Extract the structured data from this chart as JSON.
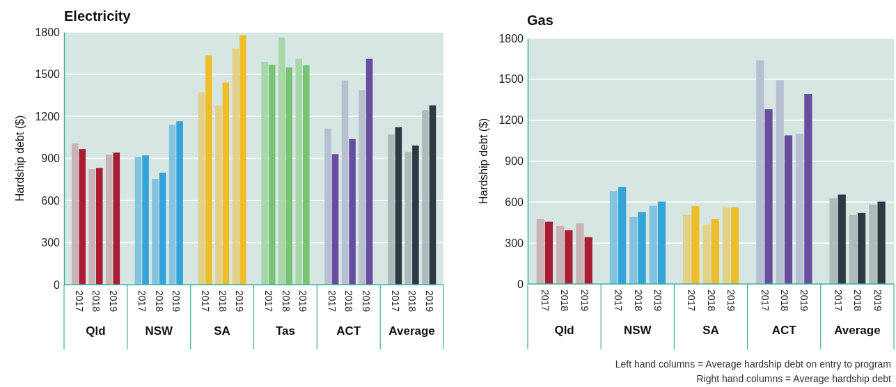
{
  "chart_data": [
    {
      "type": "bar",
      "title": "Electricity",
      "ylabel": "Hardship debt ($)",
      "categories": [
        "2017",
        "2018",
        "2019",
        "2017",
        "2018",
        "2019",
        "2017",
        "2018",
        "2019",
        "2017",
        "2018",
        "2019",
        "2017",
        "2018",
        "2019",
        "2017",
        "2018",
        "2019"
      ],
      "series": [
        {
          "colors": [
            "#c9b3b7",
            "#c9b3b7",
            "#c9b3b7",
            "#84c3e0",
            "#84c3e0",
            "#84c3e0",
            "#e4d188",
            "#e4d188",
            "#e4d188",
            "#a6d6a9",
            "#a6d6a9",
            "#a6d6a9",
            "#b9bfd2",
            "#b9bfd2",
            "#b9bfd2",
            "#adbcbb",
            "#adbcbb",
            "#adbcbb"
          ],
          "values": [
            1005,
            822,
            926,
            910,
            753,
            1139,
            1371,
            1277,
            1683,
            1587,
            1762,
            1609,
            1113,
            1455,
            1386,
            1070,
            946,
            1243
          ]
        },
        {
          "colors": [
            "#a91c33",
            "#a91c33",
            "#a91c33",
            "#34a3da",
            "#34a3da",
            "#34a3da",
            "#f0bd2a",
            "#f0bd2a",
            "#f0bd2a",
            "#79c374",
            "#79c374",
            "#79c374",
            "#684d9f",
            "#684d9f",
            "#684d9f",
            "#2b3a43",
            "#2b3a43",
            "#2b3a43"
          ],
          "values": [
            966,
            832,
            941,
            921,
            798,
            1164,
            1633,
            1441,
            1777,
            1568,
            1548,
            1563,
            930,
            1038,
            1609,
            1122,
            991,
            1277
          ]
        }
      ],
      "ylim": [
        0,
        1800
      ],
      "yticks": [
        0,
        300,
        600,
        900,
        1200,
        1500,
        1800
      ],
      "grid": "y",
      "annotations": [
        "Qld",
        "NSW",
        "SA",
        "Tas",
        "ACT",
        "Average"
      ]
    },
    {
      "type": "bar",
      "title": "Gas",
      "ylabel": "Hardship debt ($)",
      "categories": [
        "2017",
        "2018",
        "2019",
        "2017",
        "2018",
        "2019",
        "2017",
        "2018",
        "2019",
        "2017",
        "2018",
        "2019",
        "2017",
        "2018",
        "2019"
      ],
      "series": [
        {
          "colors": [
            "#c9b3b7",
            "#c9b3b7",
            "#c9b3b7",
            "#84c3e0",
            "#84c3e0",
            "#84c3e0",
            "#e4d188",
            "#e4d188",
            "#e4d188",
            "#b9bfd2",
            "#b9bfd2",
            "#b9bfd2",
            "#adbcbb",
            "#adbcbb",
            "#adbcbb"
          ],
          "values": [
            476,
            425,
            445,
            681,
            491,
            573,
            506,
            435,
            563,
            1638,
            1493,
            1099,
            628,
            506,
            582
          ]
        },
        {
          "colors": [
            "#a91c33",
            "#a91c33",
            "#a91c33",
            "#34a3da",
            "#34a3da",
            "#34a3da",
            "#f0bd2a",
            "#f0bd2a",
            "#f0bd2a",
            "#684d9f",
            "#684d9f",
            "#684d9f",
            "#2b3a43",
            "#2b3a43",
            "#2b3a43"
          ],
          "values": [
            456,
            394,
            343,
            710,
            527,
            604,
            571,
            474,
            561,
            1280,
            1089,
            1392,
            655,
            521,
            604
          ]
        }
      ],
      "ylim": [
        0,
        1800
      ],
      "yticks": [
        0,
        300,
        600,
        900,
        1200,
        1500,
        1800
      ],
      "grid": "y",
      "annotations": [
        "Qld",
        "NSW",
        "SA",
        "ACT",
        "Average",
        "Left hand columns = Average hardship debt on entry to program",
        "Right hand columns = Average hardship debt"
      ]
    }
  ]
}
